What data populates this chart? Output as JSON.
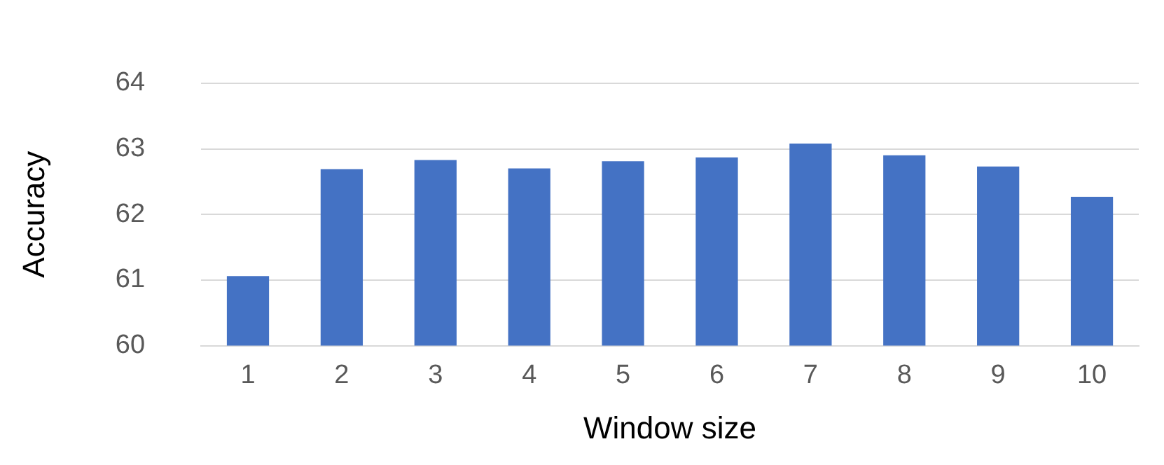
{
  "chart_data": {
    "type": "bar",
    "xlabel": "Window size",
    "ylabel": "Accuracy",
    "categories": [
      "1",
      "2",
      "3",
      "4",
      "5",
      "6",
      "7",
      "8",
      "9",
      "10"
    ],
    "values": [
      61.06,
      62.69,
      62.83,
      62.7,
      62.81,
      62.87,
      63.08,
      62.9,
      62.73,
      62.27
    ],
    "color": "#4472c4",
    "ylim": [
      60,
      64
    ],
    "yticks": [
      60,
      61,
      62,
      63,
      64
    ],
    "grid": "y"
  }
}
